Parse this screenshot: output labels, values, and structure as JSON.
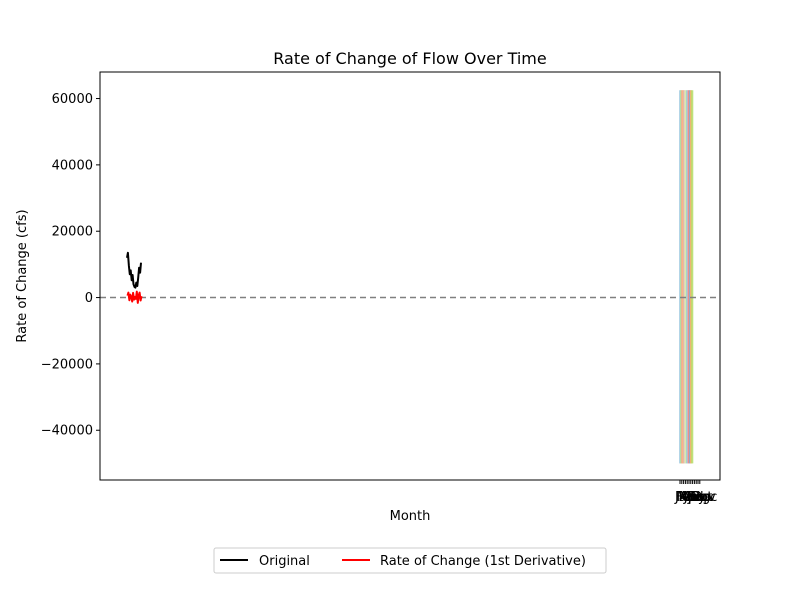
{
  "chart_data": {
    "type": "line",
    "title": "Rate of Change of Flow Over Time",
    "xlabel": "Month",
    "ylabel": "Rate of Change (cfs)",
    "ylim": [
      -55000,
      68000
    ],
    "yticks": [
      -40000,
      -20000,
      0,
      20000,
      40000,
      60000
    ],
    "ytick_labels": [
      "−40000",
      "−20000",
      "0",
      "20000",
      "40000",
      "60000"
    ],
    "xtick_labels": [
      "Jan",
      "Feb",
      "Mar",
      "Apr",
      "May",
      "Jun",
      "Jul",
      "Aug",
      "Sep",
      "Oct",
      "Nov",
      "Dec"
    ],
    "zero_line": {
      "y": 0,
      "color": "#808080",
      "style": "dashed"
    },
    "grid": false,
    "legend": {
      "placement": "bottom-center",
      "columns": 2
    },
    "series": [
      {
        "name": "Original",
        "color": "#000000",
        "values": [
          12000,
          13500,
          9500,
          7000,
          8200,
          5200,
          6800,
          4000,
          3200,
          3000,
          4500,
          3500,
          6000,
          9000,
          7500,
          10500
        ]
      },
      {
        "name": "Rate of Change (1st Derivative)",
        "color": "#ff0000",
        "values": [
          600,
          1500,
          -800,
          900,
          300,
          -1200,
          1400,
          -600,
          200,
          -400,
          1800,
          -1600,
          700,
          1500,
          -900,
          400
        ]
      }
    ],
    "month_bands": {
      "ymin": -50000,
      "ymax": 62500,
      "colors": [
        "#a6cee3",
        "#b2df8a",
        "#fb9a99",
        "#fdbf6f",
        "#cab2d6",
        "#ffff99",
        "#8dd3c7",
        "#bebada",
        "#fb8072",
        "#80b1d3",
        "#fdb462",
        "#b3de69"
      ]
    }
  }
}
